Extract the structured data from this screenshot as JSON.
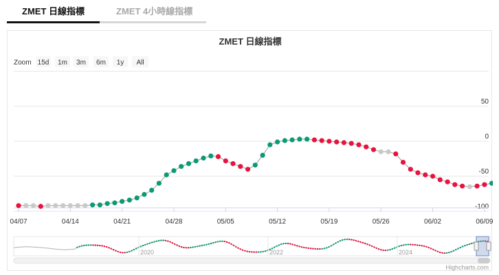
{
  "tabs": [
    {
      "label": "ZMET 日線指標",
      "active": true
    },
    {
      "label": "ZMET 4小時線指標",
      "active": false
    }
  ],
  "chart_data": {
    "type": "line",
    "title": "ZMET 日線指標",
    "xlabel": "",
    "ylabel": "",
    "zoom": {
      "label": "Zoom",
      "buttons": [
        "15d",
        "1m",
        "3m",
        "6m",
        "1y",
        "All"
      ]
    },
    "x_ticks": [
      "04/07",
      "04/14",
      "04/21",
      "04/28",
      "05/05",
      "05/12",
      "05/19",
      "05/26",
      "06/02",
      "06/09"
    ],
    "y_ticks": [
      50,
      0,
      -50,
      -100
    ],
    "ylim": [
      -100,
      100
    ],
    "y_axis_position": "right",
    "grid": true,
    "legend": "none",
    "marker_colors": {
      "up": "#0a9a74",
      "down": "#e8123f",
      "flat": "#c9c9c9"
    },
    "line_color": "#9e9e9e",
    "series": [
      {
        "x": [
          "2024-04-07",
          "2024-04-08",
          "2024-04-09",
          "2024-04-10",
          "2024-04-11",
          "2024-04-12",
          "2024-04-13",
          "2024-04-14",
          "2024-04-15",
          "2024-04-16",
          "2024-04-17",
          "2024-04-18",
          "2024-04-19",
          "2024-04-20",
          "2024-04-21",
          "2024-04-22",
          "2024-04-23",
          "2024-04-24",
          "2024-04-25",
          "2024-04-26",
          "2024-04-27",
          "2024-04-28",
          "2024-04-29",
          "2024-04-30",
          "2024-05-01",
          "2024-05-02",
          "2024-05-03",
          "2024-05-04",
          "2024-05-05",
          "2024-05-06",
          "2024-05-07",
          "2024-05-08",
          "2024-05-09",
          "2024-05-10",
          "2024-05-11",
          "2024-05-12",
          "2024-05-13",
          "2024-05-14",
          "2024-05-15",
          "2024-05-16",
          "2024-05-17",
          "2024-05-18",
          "2024-05-19",
          "2024-05-20",
          "2024-05-21",
          "2024-05-22",
          "2024-05-23",
          "2024-05-24",
          "2024-05-25",
          "2024-05-26",
          "2024-05-27",
          "2024-05-28",
          "2024-05-29",
          "2024-05-30",
          "2024-05-31",
          "2024-06-01",
          "2024-06-02",
          "2024-06-03",
          "2024-06-04",
          "2024-06-05",
          "2024-06-06",
          "2024-06-07",
          "2024-06-08",
          "2024-06-09",
          "2024-06-10"
        ],
        "values": [
          -92,
          -92,
          -92,
          -93,
          -92,
          -92,
          -92,
          -92,
          -92,
          -92,
          -91,
          -91,
          -89,
          -88,
          -86,
          -84,
          -81,
          -76,
          -70,
          -60,
          -48,
          -42,
          -36,
          -32,
          -28,
          -24,
          -21,
          -22,
          -28,
          -32,
          -36,
          -40,
          -34,
          -20,
          -5,
          -1,
          1,
          2,
          3,
          3,
          2,
          1,
          0,
          -1,
          -2,
          -3,
          -5,
          -8,
          -12,
          -15,
          -15,
          -18,
          -30,
          -40,
          -45,
          -48,
          -50,
          -55,
          -58,
          -62,
          -64,
          -65,
          -64,
          -62,
          -60
        ],
        "states": [
          "down",
          "flat",
          "flat",
          "down",
          "flat",
          "flat",
          "flat",
          "flat",
          "flat",
          "flat",
          "up",
          "up",
          "up",
          "up",
          "up",
          "up",
          "up",
          "up",
          "up",
          "up",
          "up",
          "up",
          "up",
          "up",
          "up",
          "up",
          "up",
          "down",
          "down",
          "down",
          "down",
          "down",
          "up",
          "up",
          "up",
          "up",
          "up",
          "up",
          "up",
          "up",
          "down",
          "down",
          "down",
          "down",
          "down",
          "down",
          "down",
          "down",
          "down",
          "flat",
          "flat",
          "down",
          "down",
          "down",
          "down",
          "down",
          "down",
          "down",
          "down",
          "down",
          "down",
          "flat",
          "down",
          "down",
          "up"
        ]
      }
    ],
    "navigator": {
      "year_labels": [
        "2020",
        "2022",
        "2024"
      ]
    },
    "credits": "Highcharts.com"
  }
}
